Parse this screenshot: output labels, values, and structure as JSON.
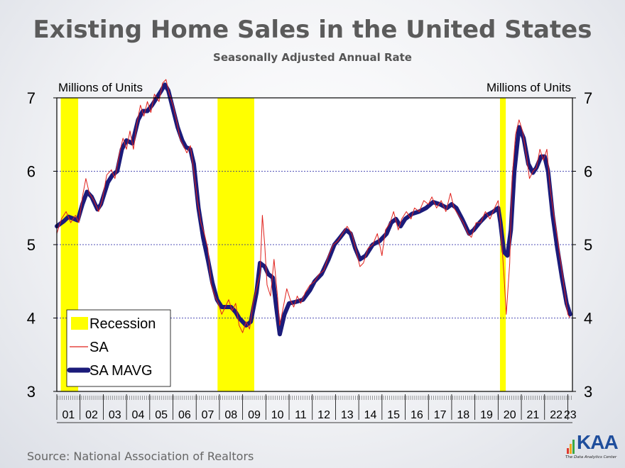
{
  "header": {
    "title": "Existing Home Sales in the United States",
    "subtitle": "Seasonally Adjusted Annual Rate"
  },
  "footer": {
    "source": "Source: National Association of Realtors",
    "logo_text": "KAA",
    "logo_tagline": "The Data Analytics Center"
  },
  "chart_data": {
    "type": "line",
    "ylabel_left": "Millions of Units",
    "ylabel_right": "Millions of Units",
    "ylim": [
      3,
      7
    ],
    "yticks": [
      3,
      4,
      5,
      6,
      7
    ],
    "xlim": [
      2001.0,
      2023.2
    ],
    "x_year_labels": [
      "01",
      "02",
      "03",
      "04",
      "05",
      "06",
      "07",
      "08",
      "09",
      "10",
      "11",
      "12",
      "13",
      "14",
      "15",
      "16",
      "17",
      "18",
      "19",
      "20",
      "21",
      "22",
      "23"
    ],
    "grid": "horizontal dotted",
    "legend_placement": "bottom-left",
    "legend": [
      {
        "label": "Recession",
        "color": "#ffff00",
        "style": "fill"
      },
      {
        "label": "SA",
        "color": "#e0201b",
        "style": "thin-line"
      },
      {
        "label": "SA MAVG",
        "color": "#1b1b7a",
        "style": "thick-line"
      }
    ],
    "recessions": [
      {
        "start": 2001.17,
        "end": 2001.92
      },
      {
        "start": 2007.92,
        "end": 2009.5
      },
      {
        "start": 2020.08,
        "end": 2020.33
      }
    ],
    "series": [
      {
        "name": "SA MAVG",
        "color": "#1b1b7a",
        "points": [
          [
            2001.0,
            5.25
          ],
          [
            2001.3,
            5.32
          ],
          [
            2001.5,
            5.38
          ],
          [
            2001.75,
            5.35
          ],
          [
            2001.9,
            5.33
          ],
          [
            2002.1,
            5.55
          ],
          [
            2002.3,
            5.72
          ],
          [
            2002.5,
            5.65
          ],
          [
            2002.75,
            5.48
          ],
          [
            2002.9,
            5.55
          ],
          [
            2003.2,
            5.85
          ],
          [
            2003.4,
            5.95
          ],
          [
            2003.6,
            6.0
          ],
          [
            2003.8,
            6.3
          ],
          [
            2004.0,
            6.42
          ],
          [
            2004.25,
            6.38
          ],
          [
            2004.5,
            6.7
          ],
          [
            2004.7,
            6.82
          ],
          [
            2004.9,
            6.82
          ],
          [
            2005.1,
            6.9
          ],
          [
            2005.3,
            7.0
          ],
          [
            2005.5,
            7.1
          ],
          [
            2005.65,
            7.18
          ],
          [
            2005.8,
            7.1
          ],
          [
            2006.0,
            6.85
          ],
          [
            2006.2,
            6.6
          ],
          [
            2006.4,
            6.42
          ],
          [
            2006.55,
            6.33
          ],
          [
            2006.75,
            6.3
          ],
          [
            2006.9,
            6.1
          ],
          [
            2007.1,
            5.5
          ],
          [
            2007.3,
            5.1
          ],
          [
            2007.5,
            4.8
          ],
          [
            2007.7,
            4.48
          ],
          [
            2007.9,
            4.25
          ],
          [
            2008.1,
            4.15
          ],
          [
            2008.3,
            4.15
          ],
          [
            2008.5,
            4.15
          ],
          [
            2008.7,
            4.08
          ],
          [
            2008.85,
            4.0
          ],
          [
            2009.0,
            3.95
          ],
          [
            2009.15,
            3.9
          ],
          [
            2009.35,
            3.95
          ],
          [
            2009.6,
            4.35
          ],
          [
            2009.75,
            4.75
          ],
          [
            2009.95,
            4.7
          ],
          [
            2010.1,
            4.6
          ],
          [
            2010.3,
            4.55
          ],
          [
            2010.45,
            4.15
          ],
          [
            2010.6,
            3.78
          ],
          [
            2010.8,
            4.05
          ],
          [
            2011.0,
            4.2
          ],
          [
            2011.3,
            4.22
          ],
          [
            2011.6,
            4.25
          ],
          [
            2011.9,
            4.38
          ],
          [
            2012.1,
            4.5
          ],
          [
            2012.4,
            4.6
          ],
          [
            2012.7,
            4.8
          ],
          [
            2012.95,
            5.0
          ],
          [
            2013.2,
            5.1
          ],
          [
            2013.45,
            5.2
          ],
          [
            2013.65,
            5.15
          ],
          [
            2013.85,
            4.95
          ],
          [
            2014.05,
            4.8
          ],
          [
            2014.3,
            4.85
          ],
          [
            2014.6,
            5.0
          ],
          [
            2014.9,
            5.05
          ],
          [
            2015.2,
            5.15
          ],
          [
            2015.4,
            5.3
          ],
          [
            2015.6,
            5.35
          ],
          [
            2015.8,
            5.25
          ],
          [
            2016.0,
            5.35
          ],
          [
            2016.3,
            5.42
          ],
          [
            2016.6,
            5.45
          ],
          [
            2016.9,
            5.5
          ],
          [
            2017.2,
            5.58
          ],
          [
            2017.5,
            5.55
          ],
          [
            2017.8,
            5.5
          ],
          [
            2018.0,
            5.55
          ],
          [
            2018.2,
            5.5
          ],
          [
            2018.45,
            5.35
          ],
          [
            2018.75,
            5.15
          ],
          [
            2018.95,
            5.2
          ],
          [
            2019.2,
            5.3
          ],
          [
            2019.5,
            5.4
          ],
          [
            2019.8,
            5.45
          ],
          [
            2020.0,
            5.5
          ],
          [
            2020.1,
            5.3
          ],
          [
            2020.25,
            4.9
          ],
          [
            2020.4,
            4.85
          ],
          [
            2020.55,
            5.2
          ],
          [
            2020.7,
            6.0
          ],
          [
            2020.9,
            6.6
          ],
          [
            2021.1,
            6.45
          ],
          [
            2021.3,
            6.1
          ],
          [
            2021.5,
            5.98
          ],
          [
            2021.65,
            6.05
          ],
          [
            2021.85,
            6.2
          ],
          [
            2022.0,
            6.2
          ],
          [
            2022.15,
            6.0
          ],
          [
            2022.35,
            5.4
          ],
          [
            2022.55,
            4.95
          ],
          [
            2022.75,
            4.55
          ],
          [
            2022.95,
            4.2
          ],
          [
            2023.1,
            4.05
          ]
        ]
      },
      {
        "name": "SA",
        "color": "#e0201b",
        "points": [
          [
            2001.0,
            5.15
          ],
          [
            2001.2,
            5.35
          ],
          [
            2001.4,
            5.45
          ],
          [
            2001.6,
            5.3
          ],
          [
            2001.8,
            5.4
          ],
          [
            2001.95,
            5.3
          ],
          [
            2002.1,
            5.65
          ],
          [
            2002.25,
            5.9
          ],
          [
            2002.4,
            5.7
          ],
          [
            2002.6,
            5.6
          ],
          [
            2002.8,
            5.45
          ],
          [
            2002.95,
            5.6
          ],
          [
            2003.15,
            5.95
          ],
          [
            2003.35,
            6.02
          ],
          [
            2003.5,
            5.9
          ],
          [
            2003.7,
            6.25
          ],
          [
            2003.85,
            6.45
          ],
          [
            2004.0,
            6.3
          ],
          [
            2004.15,
            6.55
          ],
          [
            2004.3,
            6.3
          ],
          [
            2004.45,
            6.65
          ],
          [
            2004.6,
            6.9
          ],
          [
            2004.75,
            6.75
          ],
          [
            2004.9,
            6.95
          ],
          [
            2005.05,
            6.8
          ],
          [
            2005.2,
            7.05
          ],
          [
            2005.4,
            6.95
          ],
          [
            2005.55,
            7.2
          ],
          [
            2005.7,
            7.25
          ],
          [
            2005.85,
            7.05
          ],
          [
            2006.0,
            6.9
          ],
          [
            2006.15,
            6.7
          ],
          [
            2006.3,
            6.45
          ],
          [
            2006.45,
            6.35
          ],
          [
            2006.6,
            6.25
          ],
          [
            2006.75,
            6.35
          ],
          [
            2006.9,
            6.0
          ],
          [
            2007.05,
            5.6
          ],
          [
            2007.2,
            5.3
          ],
          [
            2007.35,
            5.15
          ],
          [
            2007.5,
            4.95
          ],
          [
            2007.65,
            4.45
          ],
          [
            2007.8,
            4.3
          ],
          [
            2007.95,
            4.2
          ],
          [
            2008.1,
            4.05
          ],
          [
            2008.25,
            4.15
          ],
          [
            2008.4,
            4.25
          ],
          [
            2008.55,
            4.1
          ],
          [
            2008.7,
            4.2
          ],
          [
            2008.85,
            3.9
          ],
          [
            2009.0,
            3.8
          ],
          [
            2009.15,
            3.95
          ],
          [
            2009.3,
            3.85
          ],
          [
            2009.45,
            4.2
          ],
          [
            2009.6,
            4.4
          ],
          [
            2009.75,
            4.6
          ],
          [
            2009.85,
            5.4
          ],
          [
            2009.95,
            5.0
          ],
          [
            2010.05,
            4.45
          ],
          [
            2010.2,
            4.3
          ],
          [
            2010.35,
            4.8
          ],
          [
            2010.5,
            4.3
          ],
          [
            2010.6,
            3.9
          ],
          [
            2010.75,
            4.15
          ],
          [
            2010.9,
            4.4
          ],
          [
            2011.05,
            4.25
          ],
          [
            2011.2,
            4.15
          ],
          [
            2011.35,
            4.3
          ],
          [
            2011.5,
            4.2
          ],
          [
            2011.7,
            4.35
          ],
          [
            2011.9,
            4.45
          ],
          [
            2012.1,
            4.5
          ],
          [
            2012.3,
            4.6
          ],
          [
            2012.5,
            4.65
          ],
          [
            2012.7,
            4.85
          ],
          [
            2012.9,
            5.0
          ],
          [
            2013.1,
            5.05
          ],
          [
            2013.3,
            5.15
          ],
          [
            2013.5,
            5.25
          ],
          [
            2013.7,
            5.15
          ],
          [
            2013.9,
            4.9
          ],
          [
            2014.05,
            4.7
          ],
          [
            2014.2,
            4.75
          ],
          [
            2014.4,
            4.95
          ],
          [
            2014.6,
            5.0
          ],
          [
            2014.8,
            5.15
          ],
          [
            2015.0,
            4.85
          ],
          [
            2015.15,
            5.2
          ],
          [
            2015.35,
            5.3
          ],
          [
            2015.5,
            5.45
          ],
          [
            2015.7,
            5.2
          ],
          [
            2015.85,
            5.35
          ],
          [
            2016.05,
            5.45
          ],
          [
            2016.25,
            5.35
          ],
          [
            2016.4,
            5.5
          ],
          [
            2016.6,
            5.45
          ],
          [
            2016.8,
            5.6
          ],
          [
            2017.0,
            5.55
          ],
          [
            2017.15,
            5.65
          ],
          [
            2017.35,
            5.5
          ],
          [
            2017.55,
            5.6
          ],
          [
            2017.75,
            5.45
          ],
          [
            2017.95,
            5.7
          ],
          [
            2018.1,
            5.5
          ],
          [
            2018.3,
            5.4
          ],
          [
            2018.5,
            5.3
          ],
          [
            2018.7,
            5.15
          ],
          [
            2018.85,
            5.1
          ],
          [
            2019.05,
            5.3
          ],
          [
            2019.25,
            5.3
          ],
          [
            2019.45,
            5.45
          ],
          [
            2019.65,
            5.35
          ],
          [
            2019.85,
            5.5
          ],
          [
            2020.0,
            5.6
          ],
          [
            2020.1,
            5.3
          ],
          [
            2020.25,
            4.6
          ],
          [
            2020.35,
            4.05
          ],
          [
            2020.5,
            4.75
          ],
          [
            2020.6,
            5.9
          ],
          [
            2020.75,
            6.5
          ],
          [
            2020.9,
            6.7
          ],
          [
            2021.05,
            6.55
          ],
          [
            2021.2,
            6.25
          ],
          [
            2021.35,
            5.9
          ],
          [
            2021.5,
            6.0
          ],
          [
            2021.65,
            6.05
          ],
          [
            2021.8,
            6.3
          ],
          [
            2021.95,
            6.15
          ],
          [
            2022.1,
            6.3
          ],
          [
            2022.25,
            5.75
          ],
          [
            2022.4,
            5.4
          ],
          [
            2022.55,
            5.1
          ],
          [
            2022.7,
            4.75
          ],
          [
            2022.85,
            4.4
          ],
          [
            2023.0,
            4.05
          ],
          [
            2023.1,
            4.0
          ]
        ]
      }
    ]
  }
}
